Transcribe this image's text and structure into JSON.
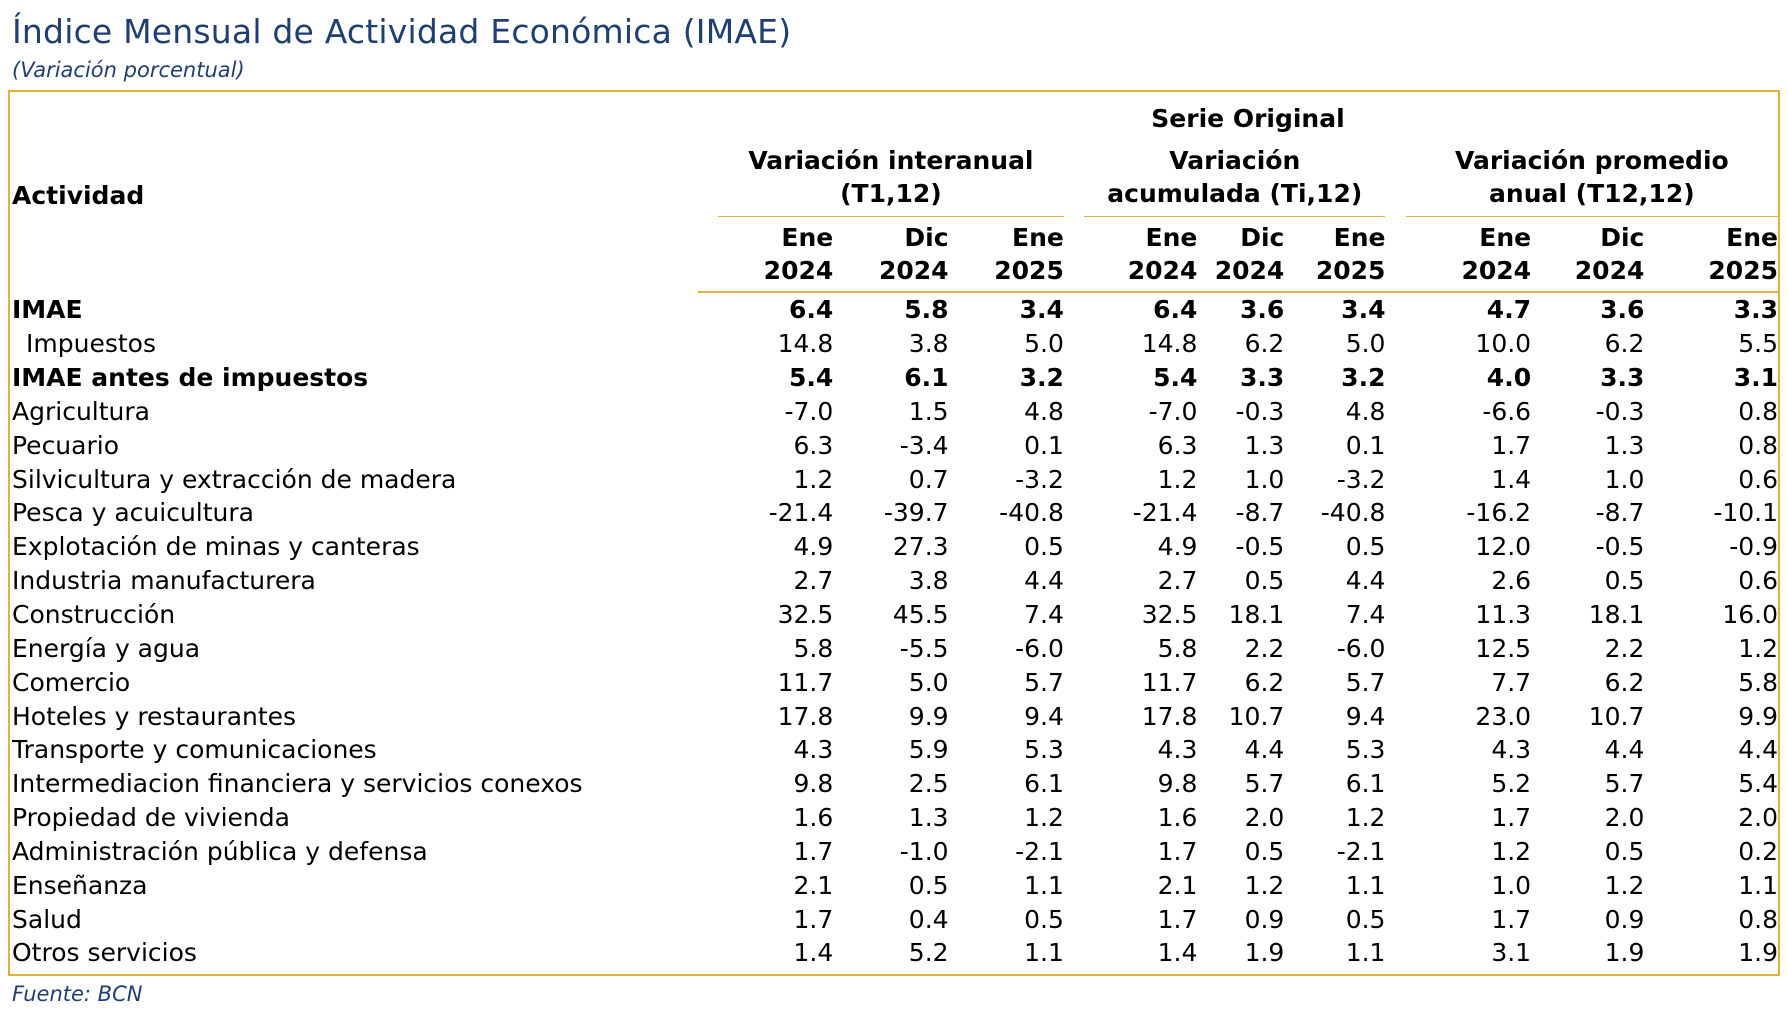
{
  "title": "Índice Mensual de Actividad Económica (IMAE)",
  "subtitle": "(Variación porcentual)",
  "source": "Fuente: BCN",
  "accent_color": "#e0b23a",
  "title_color": "#1f3f73",
  "header": {
    "activity": "Actividad",
    "serie": "Serie Original",
    "groups": [
      {
        "line1": "Variación interanual",
        "line2": "(T1,12)"
      },
      {
        "line1": "Variación",
        "line2": "acumulada (Ti,12)"
      },
      {
        "line1": "Variación promedio",
        "line2": "anual (T12,12)"
      }
    ],
    "periods": [
      {
        "month": "Ene",
        "year": "2024"
      },
      {
        "month": "Dic",
        "year": "2024"
      },
      {
        "month": "Ene",
        "year": "2025"
      },
      {
        "month": "Ene",
        "year": "2024"
      },
      {
        "month": "Dic",
        "year": "2024"
      },
      {
        "month": "Ene",
        "year": "2025"
      },
      {
        "month": "Ene",
        "year": "2024"
      },
      {
        "month": "Dic",
        "year": "2024"
      },
      {
        "month": "Ene",
        "year": "2025"
      }
    ]
  },
  "rows": [
    {
      "label": "IMAE",
      "bold": true,
      "indent": false,
      "values": [
        "6.4",
        "5.8",
        "3.4",
        "6.4",
        "3.6",
        "3.4",
        "4.7",
        "3.6",
        "3.3"
      ]
    },
    {
      "label": "Impuestos",
      "bold": false,
      "indent": true,
      "values": [
        "14.8",
        "3.8",
        "5.0",
        "14.8",
        "6.2",
        "5.0",
        "10.0",
        "6.2",
        "5.5"
      ]
    },
    {
      "label": "IMAE antes de impuestos",
      "bold": true,
      "indent": false,
      "values": [
        "5.4",
        "6.1",
        "3.2",
        "5.4",
        "3.3",
        "3.2",
        "4.0",
        "3.3",
        "3.1"
      ]
    },
    {
      "label": "Agricultura",
      "bold": false,
      "indent": false,
      "values": [
        "-7.0",
        "1.5",
        "4.8",
        "-7.0",
        "-0.3",
        "4.8",
        "-6.6",
        "-0.3",
        "0.8"
      ]
    },
    {
      "label": "Pecuario",
      "bold": false,
      "indent": false,
      "values": [
        "6.3",
        "-3.4",
        "0.1",
        "6.3",
        "1.3",
        "0.1",
        "1.7",
        "1.3",
        "0.8"
      ]
    },
    {
      "label": "Silvicultura y extracción de madera",
      "bold": false,
      "indent": false,
      "values": [
        "1.2",
        "0.7",
        "-3.2",
        "1.2",
        "1.0",
        "-3.2",
        "1.4",
        "1.0",
        "0.6"
      ]
    },
    {
      "label": "Pesca y acuicultura",
      "bold": false,
      "indent": false,
      "values": [
        "-21.4",
        "-39.7",
        "-40.8",
        "-21.4",
        "-8.7",
        "-40.8",
        "-16.2",
        "-8.7",
        "-10.1"
      ]
    },
    {
      "label": "Explotación de minas y canteras",
      "bold": false,
      "indent": false,
      "values": [
        "4.9",
        "27.3",
        "0.5",
        "4.9",
        "-0.5",
        "0.5",
        "12.0",
        "-0.5",
        "-0.9"
      ]
    },
    {
      "label": "Industria manufacturera",
      "bold": false,
      "indent": false,
      "values": [
        "2.7",
        "3.8",
        "4.4",
        "2.7",
        "0.5",
        "4.4",
        "2.6",
        "0.5",
        "0.6"
      ]
    },
    {
      "label": "Construcción",
      "bold": false,
      "indent": false,
      "values": [
        "32.5",
        "45.5",
        "7.4",
        "32.5",
        "18.1",
        "7.4",
        "11.3",
        "18.1",
        "16.0"
      ]
    },
    {
      "label": "Energía y agua",
      "bold": false,
      "indent": false,
      "values": [
        "5.8",
        "-5.5",
        "-6.0",
        "5.8",
        "2.2",
        "-6.0",
        "12.5",
        "2.2",
        "1.2"
      ]
    },
    {
      "label": "Comercio",
      "bold": false,
      "indent": false,
      "values": [
        "11.7",
        "5.0",
        "5.7",
        "11.7",
        "6.2",
        "5.7",
        "7.7",
        "6.2",
        "5.8"
      ]
    },
    {
      "label": "Hoteles y restaurantes",
      "bold": false,
      "indent": false,
      "values": [
        "17.8",
        "9.9",
        "9.4",
        "17.8",
        "10.7",
        "9.4",
        "23.0",
        "10.7",
        "9.9"
      ]
    },
    {
      "label": "Transporte y comunicaciones",
      "bold": false,
      "indent": false,
      "values": [
        "4.3",
        "5.9",
        "5.3",
        "4.3",
        "4.4",
        "5.3",
        "4.3",
        "4.4",
        "4.4"
      ]
    },
    {
      "label": "Intermediacion financiera y servicios conexos",
      "bold": false,
      "indent": false,
      "values": [
        "9.8",
        "2.5",
        "6.1",
        "9.8",
        "5.7",
        "6.1",
        "5.2",
        "5.7",
        "5.4"
      ]
    },
    {
      "label": "Propiedad de vivienda",
      "bold": false,
      "indent": false,
      "values": [
        "1.6",
        "1.3",
        "1.2",
        "1.6",
        "2.0",
        "1.2",
        "1.7",
        "2.0",
        "2.0"
      ]
    },
    {
      "label": "Administración pública y defensa",
      "bold": false,
      "indent": false,
      "values": [
        "1.7",
        "-1.0",
        "-2.1",
        "1.7",
        "0.5",
        "-2.1",
        "1.2",
        "0.5",
        "0.2"
      ]
    },
    {
      "label": "Enseñanza",
      "bold": false,
      "indent": false,
      "values": [
        "2.1",
        "0.5",
        "1.1",
        "2.1",
        "1.2",
        "1.1",
        "1.0",
        "1.2",
        "1.1"
      ]
    },
    {
      "label": "Salud",
      "bold": false,
      "indent": false,
      "values": [
        "1.7",
        "0.4",
        "0.5",
        "1.7",
        "0.9",
        "0.5",
        "1.7",
        "0.9",
        "0.8"
      ]
    },
    {
      "label": "Otros servicios",
      "bold": false,
      "indent": false,
      "values": [
        "1.4",
        "5.2",
        "1.1",
        "1.4",
        "1.9",
        "1.1",
        "3.1",
        "1.9",
        "1.9"
      ]
    }
  ]
}
